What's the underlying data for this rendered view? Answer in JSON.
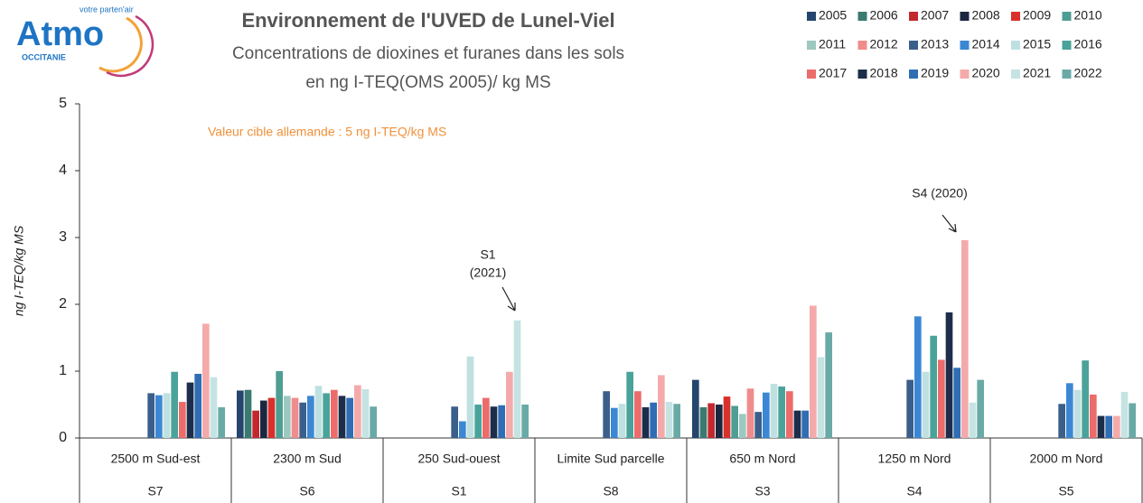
{
  "logo": {
    "name": "Atmo",
    "tagline": "votre parten'air",
    "region": "OCCITANIE"
  },
  "chart_data": {
    "type": "bar",
    "title": "Environnement de l'UVED de Lunel-Viel",
    "subtitle": [
      "Concentrations de dioxines et furanes dans les sols",
      "en ng I-TEQ(OMS 2005)/ kg MS"
    ],
    "y_label": "ng I-TEQ/kg MS",
    "annotations": [
      "Valeur cible allemande : 5 ng I-TEQ/kg MS",
      "S1",
      "(2021)",
      "S4 (2020)"
    ],
    "categories": [
      "2500 m Sud-est",
      "2300 m Sud",
      "250 Sud-ouest",
      "Limite Sud parcelle",
      "650 m Nord",
      "1250 m Nord",
      "2000 m Nord"
    ],
    "sites": [
      "S7",
      "S6",
      "S1",
      "S8",
      "S3",
      "S4",
      "S5"
    ],
    "ylim": [
      0,
      5
    ],
    "yticks": [
      0,
      1,
      2,
      3,
      4,
      5
    ],
    "grid": false,
    "legend": "top-right",
    "series": [
      {
        "name": "2005",
        "color": "#25456e",
        "values": [
          null,
          0.71,
          null,
          null,
          0.87,
          null,
          null
        ]
      },
      {
        "name": "2006",
        "color": "#3b7a70",
        "values": [
          null,
          0.72,
          null,
          null,
          0.46,
          null,
          null
        ]
      },
      {
        "name": "2007",
        "color": "#c3282d",
        "values": [
          null,
          0.41,
          null,
          null,
          0.52,
          null,
          null
        ]
      },
      {
        "name": "2008",
        "color": "#1a2740",
        "values": [
          null,
          0.56,
          null,
          null,
          0.5,
          null,
          null
        ]
      },
      {
        "name": "2009",
        "color": "#d9302c",
        "values": [
          null,
          0.6,
          null,
          null,
          0.62,
          null,
          null
        ]
      },
      {
        "name": "2010",
        "color": "#4e9e94",
        "values": [
          null,
          1.0,
          null,
          null,
          0.48,
          null,
          null
        ]
      },
      {
        "name": "2011",
        "color": "#9cc8c0",
        "values": [
          null,
          0.63,
          null,
          null,
          0.36,
          null,
          null
        ]
      },
      {
        "name": "2012",
        "color": "#f08c8c",
        "values": [
          null,
          0.6,
          null,
          null,
          0.74,
          null,
          null
        ]
      },
      {
        "name": "2013",
        "color": "#3a5f8a",
        "values": [
          0.67,
          0.53,
          0.47,
          0.7,
          0.39,
          0.87,
          0.51
        ]
      },
      {
        "name": "2014",
        "color": "#3b87d4",
        "values": [
          0.64,
          0.63,
          0.25,
          0.45,
          0.68,
          1.82,
          0.82
        ]
      },
      {
        "name": "2015",
        "color": "#bfe0e0",
        "values": [
          0.67,
          0.78,
          1.22,
          0.51,
          0.81,
          0.99,
          0.72
        ]
      },
      {
        "name": "2016",
        "color": "#4aa39a",
        "values": [
          0.99,
          0.67,
          0.5,
          0.99,
          0.77,
          1.53,
          1.16
        ]
      },
      {
        "name": "2017",
        "color": "#ec6b6b",
        "values": [
          0.54,
          0.72,
          0.6,
          0.7,
          0.7,
          1.17,
          0.65
        ]
      },
      {
        "name": "2018",
        "color": "#1c2e4a",
        "values": [
          0.83,
          0.63,
          0.47,
          0.46,
          0.41,
          1.88,
          0.33
        ]
      },
      {
        "name": "2019",
        "color": "#2f6db5",
        "values": [
          0.96,
          0.6,
          0.49,
          0.53,
          0.41,
          1.05,
          0.33
        ]
      },
      {
        "name": "2020",
        "color": "#f4aaaa",
        "values": [
          1.71,
          0.79,
          0.99,
          0.94,
          1.98,
          2.96,
          0.33
        ]
      },
      {
        "name": "2021",
        "color": "#c5e3e3",
        "values": [
          0.91,
          0.73,
          1.76,
          0.54,
          1.21,
          0.53,
          0.69
        ]
      },
      {
        "name": "2022",
        "color": "#6aaaa6",
        "values": [
          0.46,
          0.47,
          0.5,
          0.51,
          1.58,
          0.87,
          0.52
        ]
      }
    ]
  }
}
